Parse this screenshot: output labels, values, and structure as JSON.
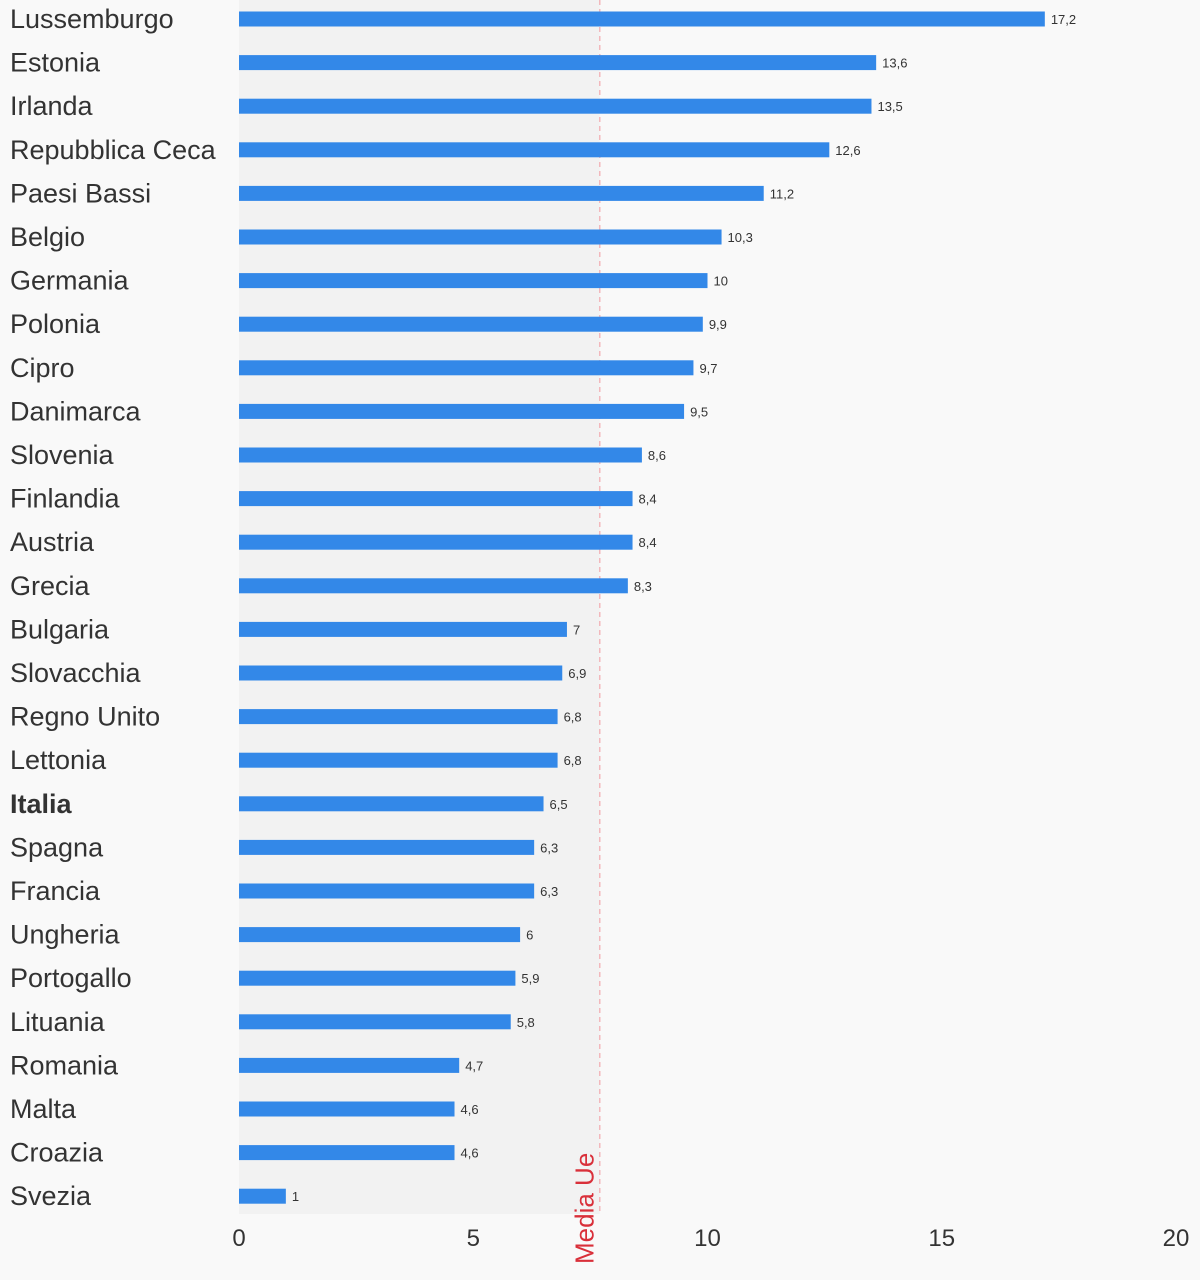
{
  "chart_data": {
    "type": "bar",
    "orientation": "horizontal",
    "categories": [
      "Lussemburgo",
      "Estonia",
      "Irlanda",
      "Repubblica Ceca",
      "Paesi Bassi",
      "Belgio",
      "Germania",
      "Polonia",
      "Cipro",
      "Danimarca",
      "Slovenia",
      "Finlandia",
      "Austria",
      "Grecia",
      "Bulgaria",
      "Slovacchia",
      "Regno Unito",
      "Lettonia",
      "Italia",
      "Spagna",
      "Francia",
      "Ungheria",
      "Portogallo",
      "Lituania",
      "Romania",
      "Malta",
      "Croazia",
      "Svezia"
    ],
    "values": [
      17.2,
      13.6,
      13.5,
      12.6,
      11.2,
      10.3,
      10,
      9.9,
      9.7,
      9.5,
      8.6,
      8.4,
      8.4,
      8.3,
      7,
      6.9,
      6.8,
      6.8,
      6.5,
      6.3,
      6.3,
      6,
      5.9,
      5.8,
      4.7,
      4.6,
      4.6,
      1
    ],
    "value_labels": [
      "17,2",
      "13,6",
      "13,5",
      "12,6",
      "11,2",
      "10,3",
      "10",
      "9,9",
      "9,7",
      "9,5",
      "8,6",
      "8,4",
      "8,4",
      "8,3",
      "7",
      "6,9",
      "6,8",
      "6,8",
      "6,5",
      "6,3",
      "6,3",
      "6",
      "5,9",
      "5,8",
      "4,7",
      "4,6",
      "4,6",
      "1"
    ],
    "highlighted_category": "Italia",
    "xlim": [
      0,
      20
    ],
    "x_ticks": [
      0,
      5,
      10,
      15,
      20
    ],
    "reference_line": {
      "label": "Media Ue",
      "value": 7.7,
      "color": "#d9303a"
    },
    "bar_color": "#3388e8",
    "shaded_region_color": "#f2f2f2",
    "text_color": "#333333",
    "grid": false,
    "legend": "none"
  }
}
